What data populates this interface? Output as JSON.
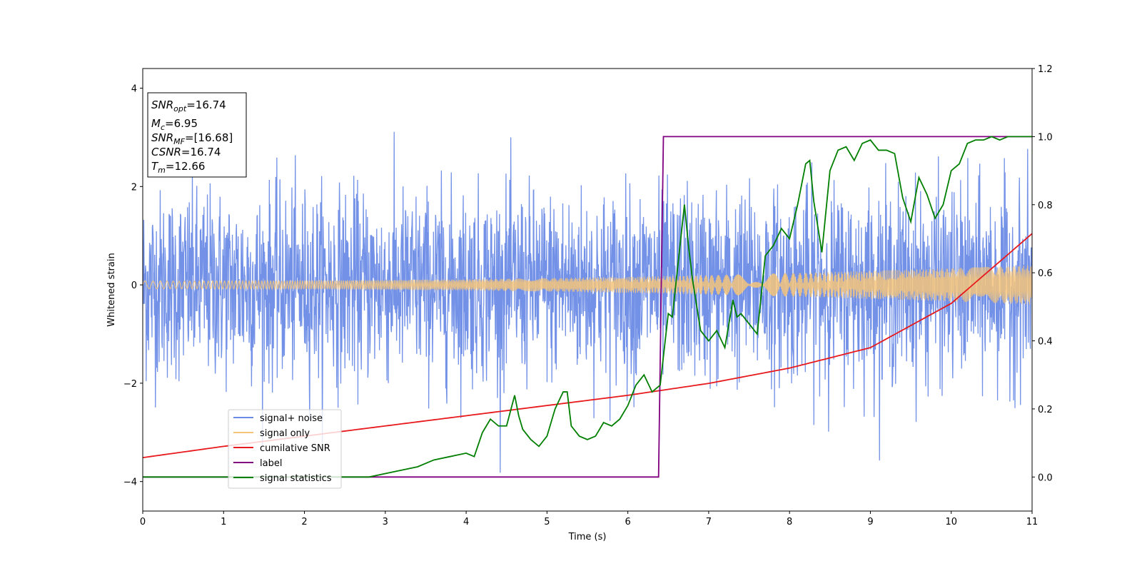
{
  "chart_data": {
    "type": "line",
    "xlabel": "Time (s)",
    "ylabel": "Whitened strain",
    "xlim": [
      0,
      11
    ],
    "ylim_left": [
      -4.6,
      4.4
    ],
    "ylim_right": [
      -0.1,
      1.2
    ],
    "x_ticks": [
      "0",
      "1",
      "2",
      "3",
      "4",
      "5",
      "6",
      "7",
      "8",
      "9",
      "10",
      "11"
    ],
    "y_ticks_left": [
      "4",
      "2",
      "0",
      "−2",
      "−4"
    ],
    "y_ticks_right": [
      "1.2",
      "1.0",
      "0.8",
      "0.6",
      "0.4",
      "0.2",
      "0.0"
    ],
    "info_box": {
      "snr_opt": {
        "base": "SNR",
        "sub": "opt",
        "value": "=16.74"
      },
      "mc": {
        "base": "M",
        "sub": "c",
        "value": "=6.95"
      },
      "snr_mf": {
        "base": "SNR",
        "sub": "MF",
        "value": "=[16.68]"
      },
      "csnr": {
        "base": "CSNR",
        "value": "=16.74"
      },
      "tm": {
        "base": "T",
        "sub": "m",
        "value": "=12.66"
      }
    },
    "series": [
      {
        "name": "signal+ noise",
        "color": "#6a8be6",
        "axis": "left",
        "noise_std": 1.0,
        "description": "dense noisy strain, amplitude ~±3"
      },
      {
        "name": "signal only",
        "color": "#f5c47a",
        "axis": "left",
        "amplitude_start": 0.08,
        "amplitude_end": 0.4
      },
      {
        "name": "cumilative SNR",
        "color": "#e8191c",
        "axis": "right",
        "x": [
          0,
          1,
          2,
          3,
          4,
          5,
          6,
          7,
          8,
          9,
          10,
          11
        ],
        "y": [
          0.057,
          0.09,
          0.12,
          0.15,
          0.18,
          0.21,
          0.24,
          0.275,
          0.32,
          0.38,
          0.51,
          0.715
        ]
      },
      {
        "name": "label",
        "color": "#800080",
        "axis": "right",
        "x": [
          0,
          6.38,
          6.44,
          11
        ],
        "y": [
          0.0,
          0.0,
          1.0,
          1.0
        ]
      },
      {
        "name": "signal statistics",
        "color": "#007f00",
        "axis": "right",
        "x": [
          0,
          0.5,
          1,
          1.5,
          2,
          2.5,
          2.8,
          3.0,
          3.2,
          3.4,
          3.6,
          3.8,
          4.0,
          4.1,
          4.2,
          4.3,
          4.4,
          4.5,
          4.6,
          4.65,
          4.7,
          4.8,
          4.9,
          5.0,
          5.1,
          5.2,
          5.25,
          5.3,
          5.4,
          5.5,
          5.6,
          5.7,
          5.8,
          5.9,
          6.0,
          6.1,
          6.2,
          6.3,
          6.4,
          6.5,
          6.55,
          6.6,
          6.7,
          6.75,
          6.8,
          6.9,
          7.0,
          7.1,
          7.2,
          7.3,
          7.35,
          7.4,
          7.5,
          7.6,
          7.7,
          7.8,
          7.9,
          8.0,
          8.1,
          8.2,
          8.25,
          8.3,
          8.4,
          8.5,
          8.6,
          8.7,
          8.8,
          8.9,
          9.0,
          9.1,
          9.2,
          9.3,
          9.4,
          9.5,
          9.6,
          9.7,
          9.8,
          9.9,
          10.0,
          10.1,
          10.2,
          10.3,
          10.4,
          10.5,
          10.6,
          10.7,
          10.8,
          11.0
        ],
        "y": [
          0.0,
          0.0,
          0.0,
          0.0,
          0.0,
          0.0,
          0.0,
          0.01,
          0.02,
          0.03,
          0.05,
          0.06,
          0.07,
          0.06,
          0.13,
          0.17,
          0.15,
          0.15,
          0.24,
          0.18,
          0.14,
          0.11,
          0.09,
          0.12,
          0.2,
          0.25,
          0.25,
          0.15,
          0.12,
          0.11,
          0.12,
          0.16,
          0.15,
          0.17,
          0.21,
          0.27,
          0.3,
          0.25,
          0.27,
          0.48,
          0.47,
          0.58,
          0.8,
          0.68,
          0.58,
          0.43,
          0.4,
          0.43,
          0.38,
          0.52,
          0.47,
          0.48,
          0.45,
          0.42,
          0.65,
          0.68,
          0.73,
          0.7,
          0.8,
          0.92,
          0.93,
          0.81,
          0.66,
          0.9,
          0.96,
          0.97,
          0.93,
          0.98,
          0.99,
          0.96,
          0.96,
          0.95,
          0.82,
          0.75,
          0.88,
          0.83,
          0.76,
          0.8,
          0.9,
          0.92,
          0.98,
          0.99,
          0.99,
          1.0,
          0.99,
          1.0,
          1.0,
          1.0
        ]
      }
    ],
    "legend": {
      "position": "lower-left"
    }
  }
}
